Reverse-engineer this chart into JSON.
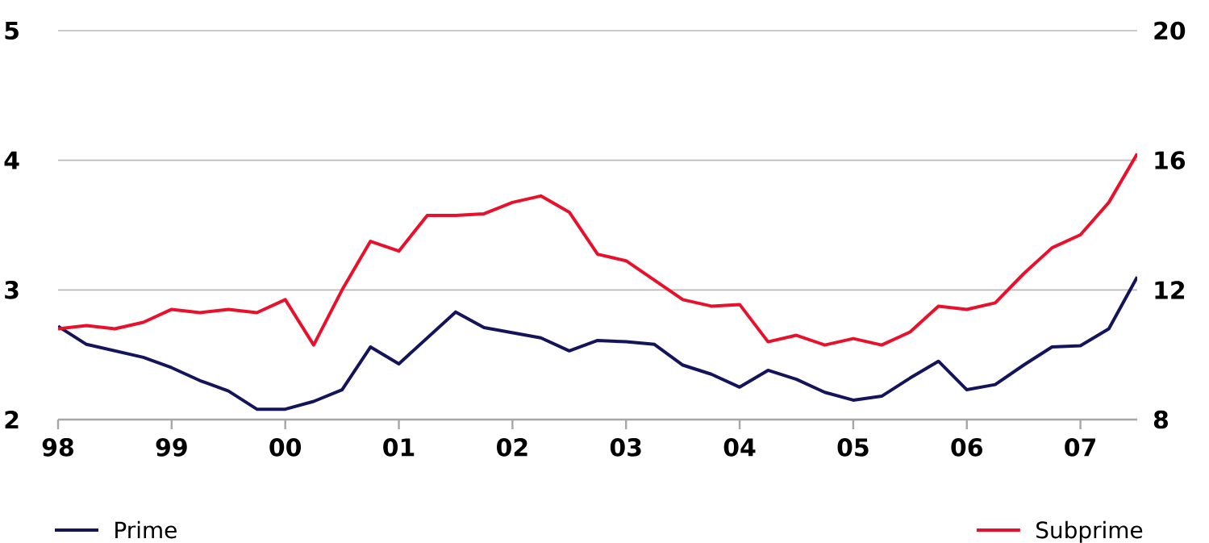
{
  "chart_data": {
    "type": "line",
    "x": [
      1998,
      1998.25,
      1998.5,
      1998.75,
      1999,
      1999.25,
      1999.5,
      1999.75,
      2000,
      2000.25,
      2000.5,
      2000.75,
      2001,
      2001.25,
      2001.5,
      2001.75,
      2002,
      2002.25,
      2002.5,
      2002.75,
      2003,
      2003.25,
      2003.5,
      2003.75,
      2004,
      2004.25,
      2004.5,
      2004.75,
      2005,
      2005.25,
      2005.5,
      2005.75,
      2006,
      2006.25,
      2006.5,
      2006.75,
      2007,
      2007.25,
      2007.5
    ],
    "series": [
      {
        "name": "Prime",
        "color": "#14145a",
        "values": [
          2.72,
          2.58,
          2.53,
          2.48,
          2.4,
          2.3,
          2.22,
          2.08,
          2.08,
          2.14,
          2.23,
          2.56,
          2.43,
          2.63,
          2.83,
          2.71,
          2.67,
          2.63,
          2.53,
          2.61,
          2.6,
          2.58,
          2.42,
          2.35,
          2.25,
          2.38,
          2.31,
          2.21,
          2.15,
          2.18,
          2.32,
          2.45,
          2.23,
          2.27,
          2.42,
          2.56,
          2.57,
          2.7,
          3.1
        ]
      },
      {
        "name": "Subprime",
        "color": "#e8102a",
        "axis": "y2",
        "values": [
          10.8,
          10.9,
          10.8,
          11.0,
          11.4,
          11.3,
          11.4,
          11.3,
          11.7,
          10.3,
          12.0,
          13.5,
          13.2,
          14.3,
          14.3,
          14.35,
          14.7,
          14.9,
          14.4,
          13.1,
          12.9,
          12.3,
          11.7,
          11.5,
          11.55,
          10.4,
          10.6,
          10.3,
          10.5,
          10.3,
          10.7,
          11.5,
          11.4,
          11.6,
          12.5,
          13.3,
          13.7,
          14.7,
          16.2
        ]
      }
    ],
    "xlim": [
      1998,
      2007.5
    ],
    "xticks": [
      {
        "value": 1998,
        "label": "98"
      },
      {
        "value": 1999,
        "label": "99"
      },
      {
        "value": 2000,
        "label": "00"
      },
      {
        "value": 2001,
        "label": "01"
      },
      {
        "value": 2002,
        "label": "02"
      },
      {
        "value": 2003,
        "label": "03"
      },
      {
        "value": 2004,
        "label": "04"
      },
      {
        "value": 2005,
        "label": "05"
      },
      {
        "value": 2006,
        "label": "06"
      },
      {
        "value": 2007,
        "label": "07"
      }
    ],
    "ylim": [
      2,
      5
    ],
    "yticks": [
      2,
      3,
      4,
      5
    ],
    "y2lim": [
      8,
      20
    ],
    "y2ticks": [
      8,
      12,
      16,
      20
    ],
    "grid": "y",
    "legend": "bottom",
    "line_style": "solid",
    "marker": "none"
  }
}
